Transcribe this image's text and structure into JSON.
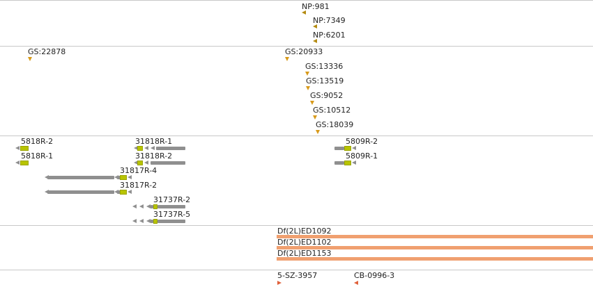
{
  "tracks": {
    "np": {
      "features": [
        {
          "label": "NP:981"
        },
        {
          "label": "NP:7349"
        },
        {
          "label": "NP:6201"
        }
      ],
      "color": "#b38a10"
    },
    "gs": {
      "features": [
        {
          "label": "GS:22878"
        },
        {
          "label": "GS:20933"
        },
        {
          "label": "GS:13336"
        },
        {
          "label": "GS:13519"
        },
        {
          "label": "GS:9052"
        },
        {
          "label": "GS:10512"
        },
        {
          "label": "GS:18039"
        }
      ],
      "color": "#d89a1a"
    },
    "transcripts": {
      "features": [
        {
          "label": "5818R-2"
        },
        {
          "label": "5818R-1"
        },
        {
          "label": "31818R-1"
        },
        {
          "label": "31818R-2"
        },
        {
          "label": "31817R-4"
        },
        {
          "label": "31817R-2"
        },
        {
          "label": "31737R-2"
        },
        {
          "label": "31737R-5"
        },
        {
          "label": "5809R-2"
        },
        {
          "label": "5809R-1"
        }
      ],
      "exon_color": "#8f8f8f",
      "cds_color": "#b8c400"
    },
    "deletions": {
      "features": [
        {
          "label": "Df(2L)ED1092"
        },
        {
          "label": "Df(2L)ED1102"
        },
        {
          "label": "Df(2L)ED1153"
        }
      ],
      "color": "#f0a070"
    },
    "insertions": {
      "features": [
        {
          "label": "5-SZ-3957"
        },
        {
          "label": "CB-0996-3"
        }
      ],
      "color": "#e0603a"
    }
  }
}
